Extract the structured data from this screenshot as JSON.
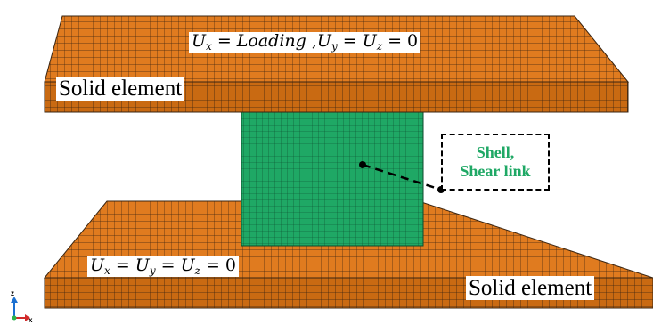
{
  "labels": {
    "top_bc": {
      "u": "U",
      "x": "x",
      "eq1": " = ",
      "loading": "Loading",
      "comma": " ,",
      "y": "y",
      "eq2": " = ",
      "z": "z",
      "zero": " = 0"
    },
    "bottom_bc": {
      "u": "U",
      "x": "x",
      "y": "y",
      "z": "z",
      "eq": " = ",
      "zero": " = 0"
    },
    "solid_top": "Solid element",
    "solid_bottom": "Solid element",
    "shell_line1": "Shell,",
    "shell_line2": "Shear link"
  },
  "axes": {
    "z": "z",
    "x": "x"
  },
  "colors": {
    "solid_face": "#e07b1f",
    "solid_side": "#c96a12",
    "solid_grid": "#3a2410",
    "shell_face": "#1fa865",
    "shell_grid": "#0c4a2c",
    "shell_text": "#1fa865",
    "axis_z": "#1a6fd1",
    "axis_y": "#2db34a",
    "axis_x": "#d22a2a"
  }
}
